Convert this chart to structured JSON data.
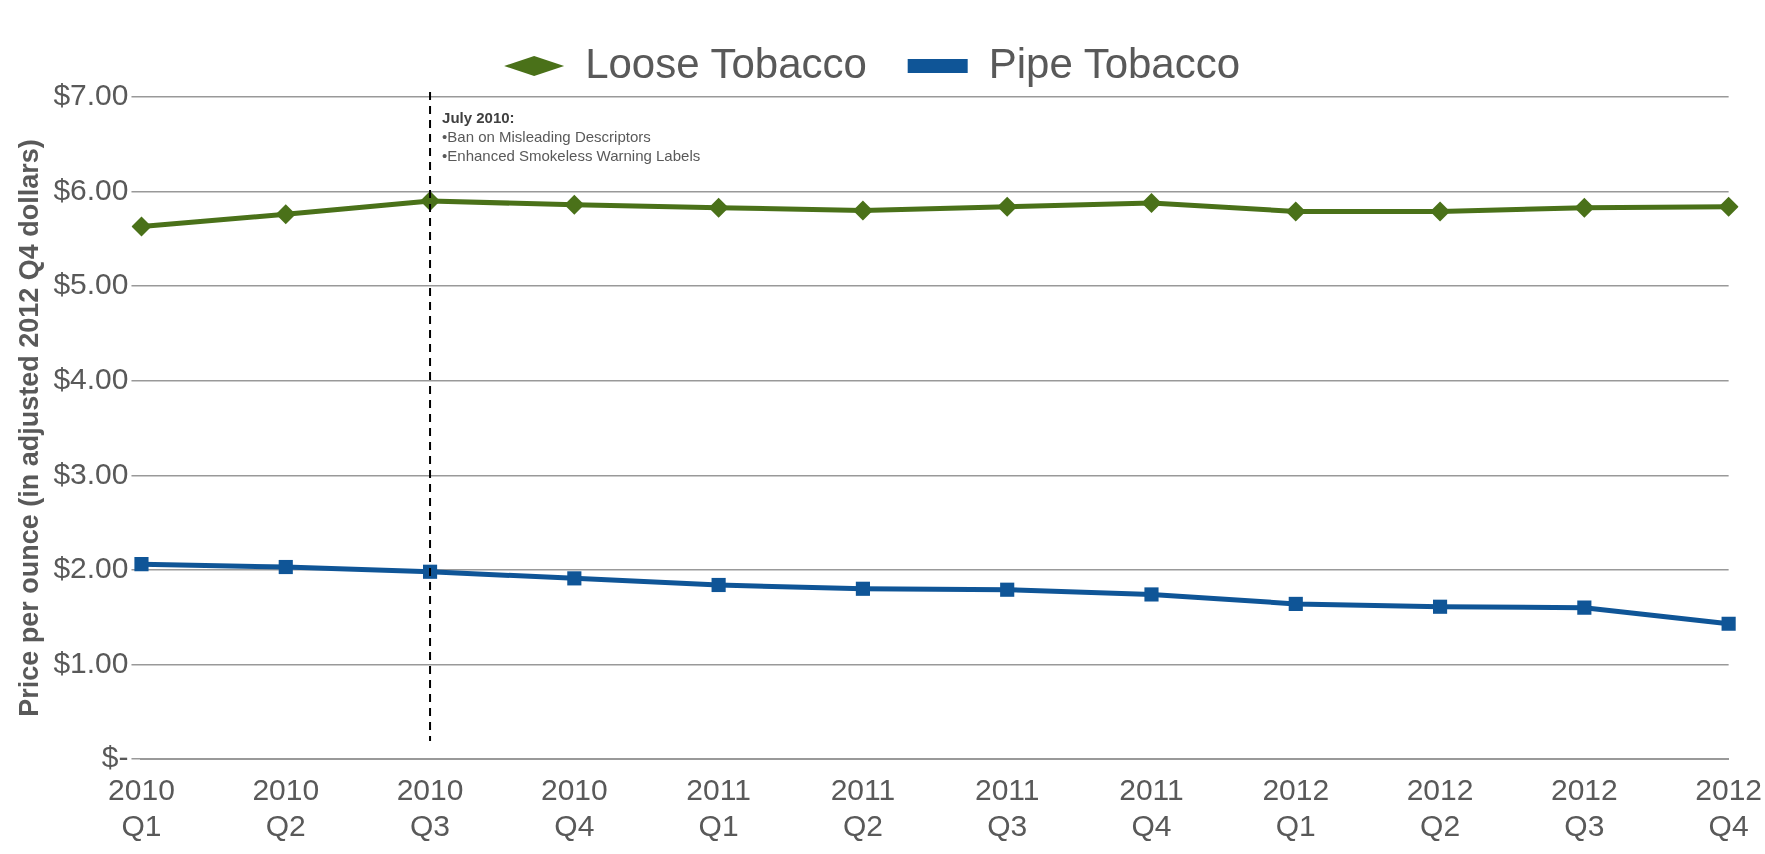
{
  "chart_data": {
    "type": "line",
    "ylabel": "Price per ounce (in adjusted 2012 Q4 dollars)",
    "categories": [
      "2010 Q1",
      "2010 Q2",
      "2010 Q3",
      "2010 Q4",
      "2011 Q1",
      "2011 Q2",
      "2011 Q3",
      "2011 Q4",
      "2012 Q1",
      "2012 Q2",
      "2012 Q3",
      "2012 Q4"
    ],
    "series": [
      {
        "name": "Loose Tobacco",
        "color": "#4a7119",
        "marker": "diamond",
        "values": [
          5.63,
          5.76,
          5.9,
          5.86,
          5.83,
          5.8,
          5.84,
          5.88,
          5.79,
          5.79,
          5.83,
          5.84
        ]
      },
      {
        "name": "Pipe Tobacco",
        "color": "#0f5597",
        "marker": "square",
        "values": [
          2.06,
          2.03,
          1.98,
          1.91,
          1.84,
          1.8,
          1.79,
          1.74,
          1.64,
          1.61,
          1.6,
          1.43
        ]
      }
    ],
    "ylim": [
      0,
      7
    ],
    "yticks": [
      {
        "value": 0,
        "label": "$-"
      },
      {
        "value": 1,
        "label": "$1.00"
      },
      {
        "value": 2,
        "label": "$2.00"
      },
      {
        "value": 3,
        "label": "$3.00"
      },
      {
        "value": 4,
        "label": "$4.00"
      },
      {
        "value": 5,
        "label": "$5.00"
      },
      {
        "value": 6,
        "label": "$6.00"
      },
      {
        "value": 7,
        "label": "$7.00"
      }
    ],
    "grid": "y",
    "legend": "top",
    "line_style": "solid",
    "ref_lines": [
      {
        "axis": "x",
        "value": "2010 Q3",
        "line_style": "dashed",
        "color": "#000000",
        "label": "July 2010:\n•Ban on Misleading Descriptors\n•Enhanced Smokeless Warning Labels"
      }
    ]
  }
}
